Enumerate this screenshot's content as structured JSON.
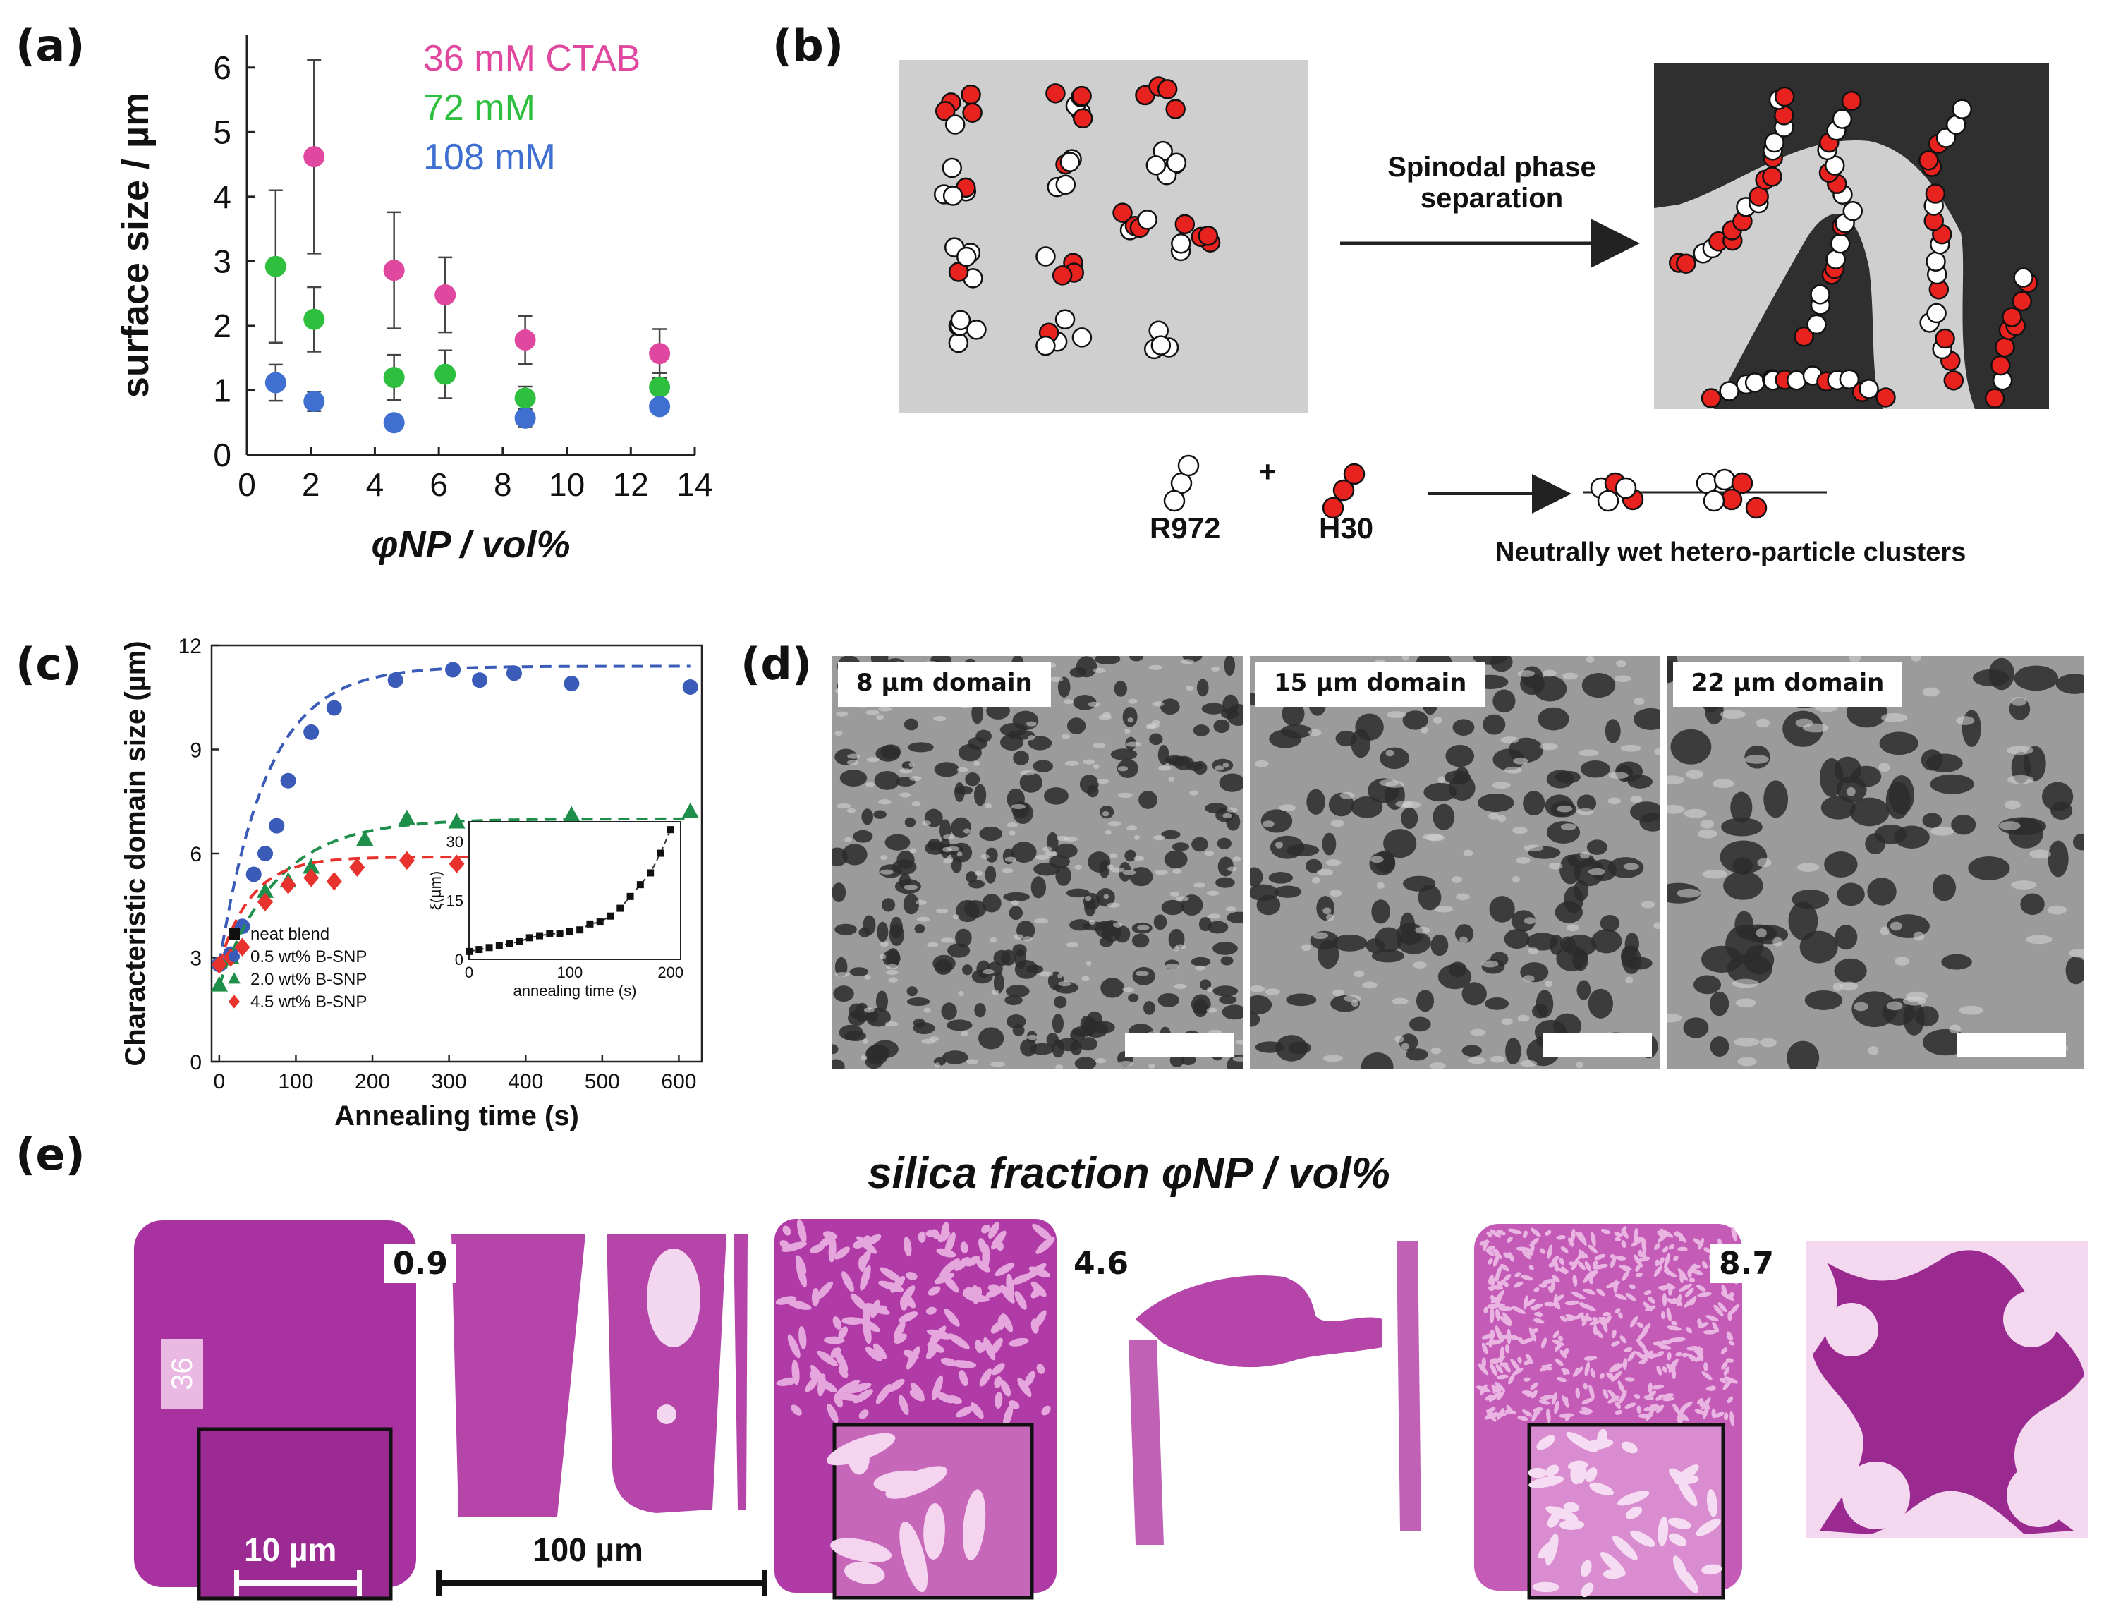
{
  "panel_labels": [
    "(a)",
    "(b)",
    "(c)",
    "(d)",
    "(e)"
  ],
  "chart_data": [
    {
      "panel": "(a)",
      "type": "scatter",
      "title": "",
      "xlabel": "φNP / vol%",
      "ylabel": "surface size / µm",
      "xlim": [
        0,
        14
      ],
      "ylim": [
        0,
        6.5
      ],
      "x_ticks": [
        "0",
        "2",
        "4",
        "6",
        "8",
        "10",
        "12",
        "14"
      ],
      "y_ticks": [
        "0",
        "1",
        "2",
        "3",
        "4",
        "5",
        "6"
      ],
      "grid": false,
      "legend_position": "top-right",
      "series": [
        {
          "name": "36 mM CTAB",
          "color": "#e0479e",
          "points": [
            {
              "x": 2.1,
              "y": 4.62,
              "err": 1.5
            },
            {
              "x": 4.6,
              "y": 2.86,
              "err": 0.9
            },
            {
              "x": 6.2,
              "y": 2.48,
              "err": 0.58
            },
            {
              "x": 8.7,
              "y": 1.78,
              "err": 0.37
            },
            {
              "x": 12.9,
              "y": 1.57,
              "err": 0.38
            }
          ]
        },
        {
          "name": "72 mM",
          "color": "#2fbf3f",
          "points": [
            {
              "x": 0.9,
              "y": 2.92,
              "err": 1.18
            },
            {
              "x": 2.1,
              "y": 2.1,
              "err": 0.5
            },
            {
              "x": 4.6,
              "y": 1.2,
              "err": 0.35
            },
            {
              "x": 6.2,
              "y": 1.25,
              "err": 0.37
            },
            {
              "x": 8.7,
              "y": 0.88,
              "err": 0.18
            },
            {
              "x": 12.9,
              "y": 1.05,
              "err": 0.22
            }
          ]
        },
        {
          "name": "108 mM",
          "color": "#3f6fd1",
          "points": [
            {
              "x": 0.9,
              "y": 1.12,
              "err": 0.28
            },
            {
              "x": 2.1,
              "y": 0.83,
              "err": 0.15
            },
            {
              "x": 4.6,
              "y": 0.5,
              "err": 0.06
            },
            {
              "x": 8.7,
              "y": 0.57,
              "err": 0.14
            },
            {
              "x": 12.9,
              "y": 0.75,
              "err": 0.1
            }
          ]
        }
      ]
    },
    {
      "panel": "(c)",
      "type": "scatter",
      "title": "",
      "xlabel": "Annealing time (s)",
      "ylabel": "Characteristic domain size (µm)",
      "xlim": [
        -10,
        630
      ],
      "ylim": [
        0,
        12
      ],
      "x_ticks": [
        "0",
        "100",
        "200",
        "300",
        "400",
        "500",
        "600"
      ],
      "y_ticks": [
        "0",
        "3",
        "6",
        "9",
        "12"
      ],
      "grid": false,
      "legend_position": "bottom-left",
      "series": [
        {
          "name": "neat blend",
          "marker": "square",
          "color": "#111111",
          "points": []
        },
        {
          "name": "0.5 wt% B-SNP",
          "marker": "circle",
          "color": "#3a5bb8",
          "x": [
            0,
            15,
            30,
            45,
            60,
            75,
            90,
            120,
            150,
            230,
            305,
            340,
            385,
            460,
            615
          ],
          "y": [
            2.8,
            3.1,
            3.9,
            5.4,
            6.0,
            6.8,
            8.1,
            9.5,
            10.2,
            11.0,
            11.3,
            11.0,
            11.2,
            10.9,
            10.8
          ],
          "fit": {
            "a": 8.6,
            "tau": 62
          }
        },
        {
          "name": "2.0 wt% B-SNP",
          "marker": "triangle",
          "color": "#1e8f4a",
          "x": [
            0,
            15,
            60,
            90,
            120,
            190,
            245,
            310,
            460,
            615
          ],
          "y": [
            2.2,
            3.0,
            4.9,
            5.2,
            5.6,
            6.4,
            7.0,
            6.9,
            7.1,
            7.2
          ],
          "fit": {
            "a": 4.8,
            "tau": 75
          }
        },
        {
          "name": "4.5 wt% B-SNP",
          "marker": "diamond",
          "color": "#e8322e",
          "x": [
            0,
            15,
            30,
            60,
            90,
            120,
            150,
            180,
            245,
            310,
            545
          ],
          "y": [
            2.8,
            3.0,
            3.3,
            4.6,
            5.1,
            5.3,
            5.2,
            5.6,
            5.8,
            5.7,
            5.9
          ],
          "fit": {
            "a": 3.1,
            "tau": 42
          }
        }
      ],
      "inset": {
        "type": "scatter",
        "xlabel": "annealing time (s)",
        "ylabel": "ξ(µm)",
        "xlim": [
          0,
          210
        ],
        "ylim": [
          0,
          35
        ],
        "x_ticks": [
          "0",
          "100",
          "200"
        ],
        "y_ticks": [
          "0",
          "15",
          "30"
        ],
        "series": [
          {
            "name": "neat blend",
            "marker": "square",
            "color": "#111111",
            "x": [
              0,
              10,
              20,
              30,
              40,
              50,
              60,
              70,
              80,
              90,
              100,
              110,
              120,
              130,
              140,
              150,
              160,
              170,
              180,
              190,
              200
            ],
            "y": [
              2,
              2.5,
              3,
              3.5,
              4,
              4.5,
              5.5,
              6,
              6.5,
              6.5,
              7,
              7.5,
              9,
              9.5,
              11,
              13,
              16,
              19,
              22,
              27,
              33
            ]
          }
        ]
      }
    }
  ],
  "panel_b": {
    "process_label": "Spinodal phase separation",
    "particle_a": "R972",
    "plus": "+",
    "particle_b": "H30",
    "result_label": "Neutrally wet hetero-particle clusters"
  },
  "panel_d": {
    "images": [
      {
        "label": "8 µm domain"
      },
      {
        "label": "15 µm domain"
      },
      {
        "label": "22 µm domain"
      }
    ]
  },
  "panel_e": {
    "title": "silica fraction φNP / vol%",
    "tag_36": "36",
    "fractions": [
      "0.9",
      "4.6",
      "8.7"
    ],
    "scale_small": "10 µm",
    "scale_large": "100 µm"
  },
  "colors": {
    "magenta": "#a8329f",
    "particle_red": "#e8231f",
    "gray_bg": "#cfcfcf",
    "dark_bg": "#2f2f2f"
  }
}
